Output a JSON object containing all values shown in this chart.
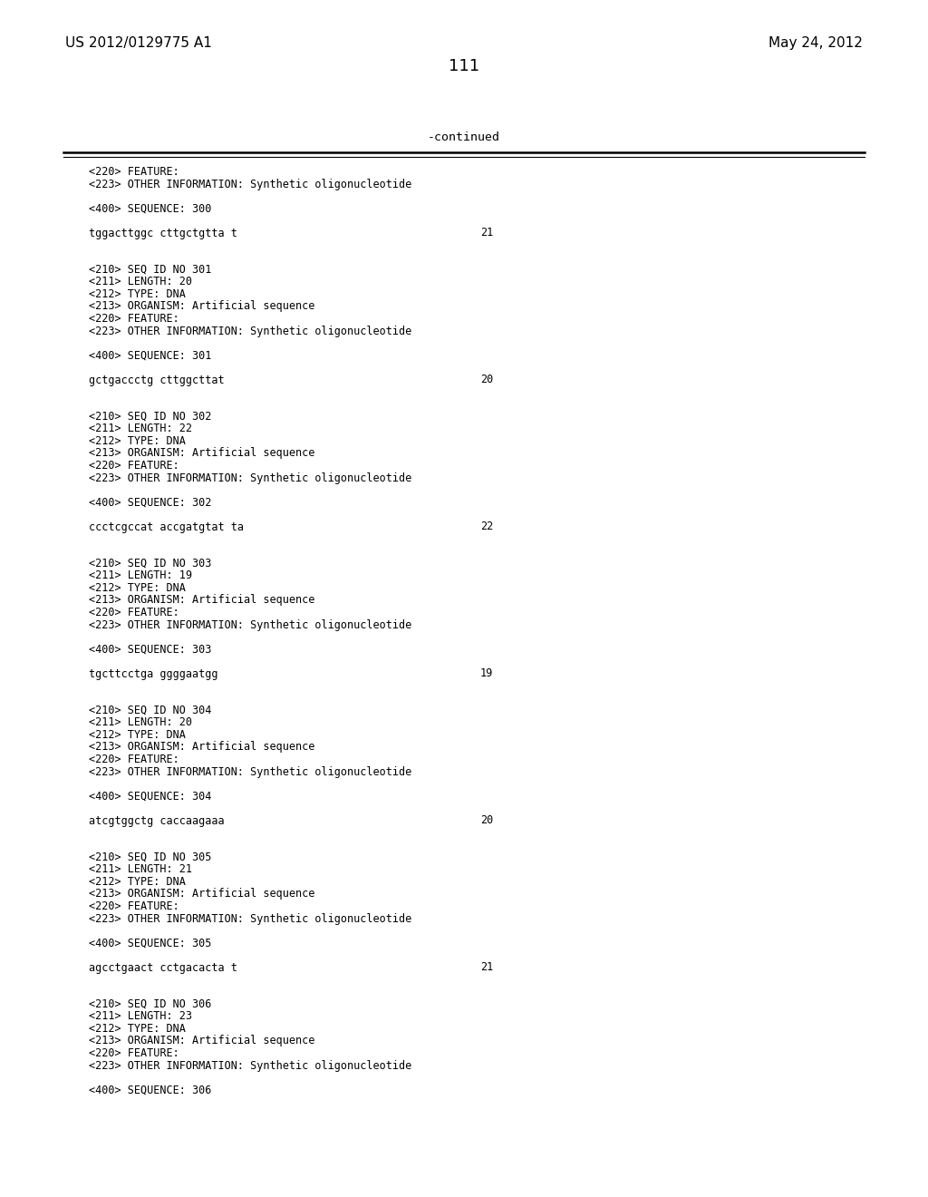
{
  "background_color": "#ffffff",
  "header_left": "US 2012/0129775 A1",
  "header_right": "May 24, 2012",
  "page_number": "111",
  "continued_label": "-continued",
  "figsize": [
    10.24,
    13.2
  ],
  "dpi": 100,
  "content_lines": [
    {
      "text": "<220> FEATURE:",
      "col": "left",
      "num": null
    },
    {
      "text": "<223> OTHER INFORMATION: Synthetic oligonucleotide",
      "col": "left",
      "num": null
    },
    {
      "text": "",
      "col": "left",
      "num": null
    },
    {
      "text": "<400> SEQUENCE: 300",
      "col": "left",
      "num": null
    },
    {
      "text": "",
      "col": "left",
      "num": null
    },
    {
      "text": "tggacttggc cttgctgtta t",
      "col": "left",
      "num": "21"
    },
    {
      "text": "",
      "col": "left",
      "num": null
    },
    {
      "text": "",
      "col": "left",
      "num": null
    },
    {
      "text": "<210> SEQ ID NO 301",
      "col": "left",
      "num": null
    },
    {
      "text": "<211> LENGTH: 20",
      "col": "left",
      "num": null
    },
    {
      "text": "<212> TYPE: DNA",
      "col": "left",
      "num": null
    },
    {
      "text": "<213> ORGANISM: Artificial sequence",
      "col": "left",
      "num": null
    },
    {
      "text": "<220> FEATURE:",
      "col": "left",
      "num": null
    },
    {
      "text": "<223> OTHER INFORMATION: Synthetic oligonucleotide",
      "col": "left",
      "num": null
    },
    {
      "text": "",
      "col": "left",
      "num": null
    },
    {
      "text": "<400> SEQUENCE: 301",
      "col": "left",
      "num": null
    },
    {
      "text": "",
      "col": "left",
      "num": null
    },
    {
      "text": "gctgaccctg cttggcttat",
      "col": "left",
      "num": "20"
    },
    {
      "text": "",
      "col": "left",
      "num": null
    },
    {
      "text": "",
      "col": "left",
      "num": null
    },
    {
      "text": "<210> SEQ ID NO 302",
      "col": "left",
      "num": null
    },
    {
      "text": "<211> LENGTH: 22",
      "col": "left",
      "num": null
    },
    {
      "text": "<212> TYPE: DNA",
      "col": "left",
      "num": null
    },
    {
      "text": "<213> ORGANISM: Artificial sequence",
      "col": "left",
      "num": null
    },
    {
      "text": "<220> FEATURE:",
      "col": "left",
      "num": null
    },
    {
      "text": "<223> OTHER INFORMATION: Synthetic oligonucleotide",
      "col": "left",
      "num": null
    },
    {
      "text": "",
      "col": "left",
      "num": null
    },
    {
      "text": "<400> SEQUENCE: 302",
      "col": "left",
      "num": null
    },
    {
      "text": "",
      "col": "left",
      "num": null
    },
    {
      "text": "ccctcgccat accgatgtat ta",
      "col": "left",
      "num": "22"
    },
    {
      "text": "",
      "col": "left",
      "num": null
    },
    {
      "text": "",
      "col": "left",
      "num": null
    },
    {
      "text": "<210> SEQ ID NO 303",
      "col": "left",
      "num": null
    },
    {
      "text": "<211> LENGTH: 19",
      "col": "left",
      "num": null
    },
    {
      "text": "<212> TYPE: DNA",
      "col": "left",
      "num": null
    },
    {
      "text": "<213> ORGANISM: Artificial sequence",
      "col": "left",
      "num": null
    },
    {
      "text": "<220> FEATURE:",
      "col": "left",
      "num": null
    },
    {
      "text": "<223> OTHER INFORMATION: Synthetic oligonucleotide",
      "col": "left",
      "num": null
    },
    {
      "text": "",
      "col": "left",
      "num": null
    },
    {
      "text": "<400> SEQUENCE: 303",
      "col": "left",
      "num": null
    },
    {
      "text": "",
      "col": "left",
      "num": null
    },
    {
      "text": "tgcttcctga ggggaatgg",
      "col": "left",
      "num": "19"
    },
    {
      "text": "",
      "col": "left",
      "num": null
    },
    {
      "text": "",
      "col": "left",
      "num": null
    },
    {
      "text": "<210> SEQ ID NO 304",
      "col": "left",
      "num": null
    },
    {
      "text": "<211> LENGTH: 20",
      "col": "left",
      "num": null
    },
    {
      "text": "<212> TYPE: DNA",
      "col": "left",
      "num": null
    },
    {
      "text": "<213> ORGANISM: Artificial sequence",
      "col": "left",
      "num": null
    },
    {
      "text": "<220> FEATURE:",
      "col": "left",
      "num": null
    },
    {
      "text": "<223> OTHER INFORMATION: Synthetic oligonucleotide",
      "col": "left",
      "num": null
    },
    {
      "text": "",
      "col": "left",
      "num": null
    },
    {
      "text": "<400> SEQUENCE: 304",
      "col": "left",
      "num": null
    },
    {
      "text": "",
      "col": "left",
      "num": null
    },
    {
      "text": "atcgtggctg caccaagaaa",
      "col": "left",
      "num": "20"
    },
    {
      "text": "",
      "col": "left",
      "num": null
    },
    {
      "text": "",
      "col": "left",
      "num": null
    },
    {
      "text": "<210> SEQ ID NO 305",
      "col": "left",
      "num": null
    },
    {
      "text": "<211> LENGTH: 21",
      "col": "left",
      "num": null
    },
    {
      "text": "<212> TYPE: DNA",
      "col": "left",
      "num": null
    },
    {
      "text": "<213> ORGANISM: Artificial sequence",
      "col": "left",
      "num": null
    },
    {
      "text": "<220> FEATURE:",
      "col": "left",
      "num": null
    },
    {
      "text": "<223> OTHER INFORMATION: Synthetic oligonucleotide",
      "col": "left",
      "num": null
    },
    {
      "text": "",
      "col": "left",
      "num": null
    },
    {
      "text": "<400> SEQUENCE: 305",
      "col": "left",
      "num": null
    },
    {
      "text": "",
      "col": "left",
      "num": null
    },
    {
      "text": "agcctgaact cctgacacta t",
      "col": "left",
      "num": "21"
    },
    {
      "text": "",
      "col": "left",
      "num": null
    },
    {
      "text": "",
      "col": "left",
      "num": null
    },
    {
      "text": "<210> SEQ ID NO 306",
      "col": "left",
      "num": null
    },
    {
      "text": "<211> LENGTH: 23",
      "col": "left",
      "num": null
    },
    {
      "text": "<212> TYPE: DNA",
      "col": "left",
      "num": null
    },
    {
      "text": "<213> ORGANISM: Artificial sequence",
      "col": "left",
      "num": null
    },
    {
      "text": "<220> FEATURE:",
      "col": "left",
      "num": null
    },
    {
      "text": "<223> OTHER INFORMATION: Synthetic oligonucleotide",
      "col": "left",
      "num": null
    },
    {
      "text": "",
      "col": "left",
      "num": null
    },
    {
      "text": "<400> SEQUENCE: 306",
      "col": "left",
      "num": null
    }
  ]
}
